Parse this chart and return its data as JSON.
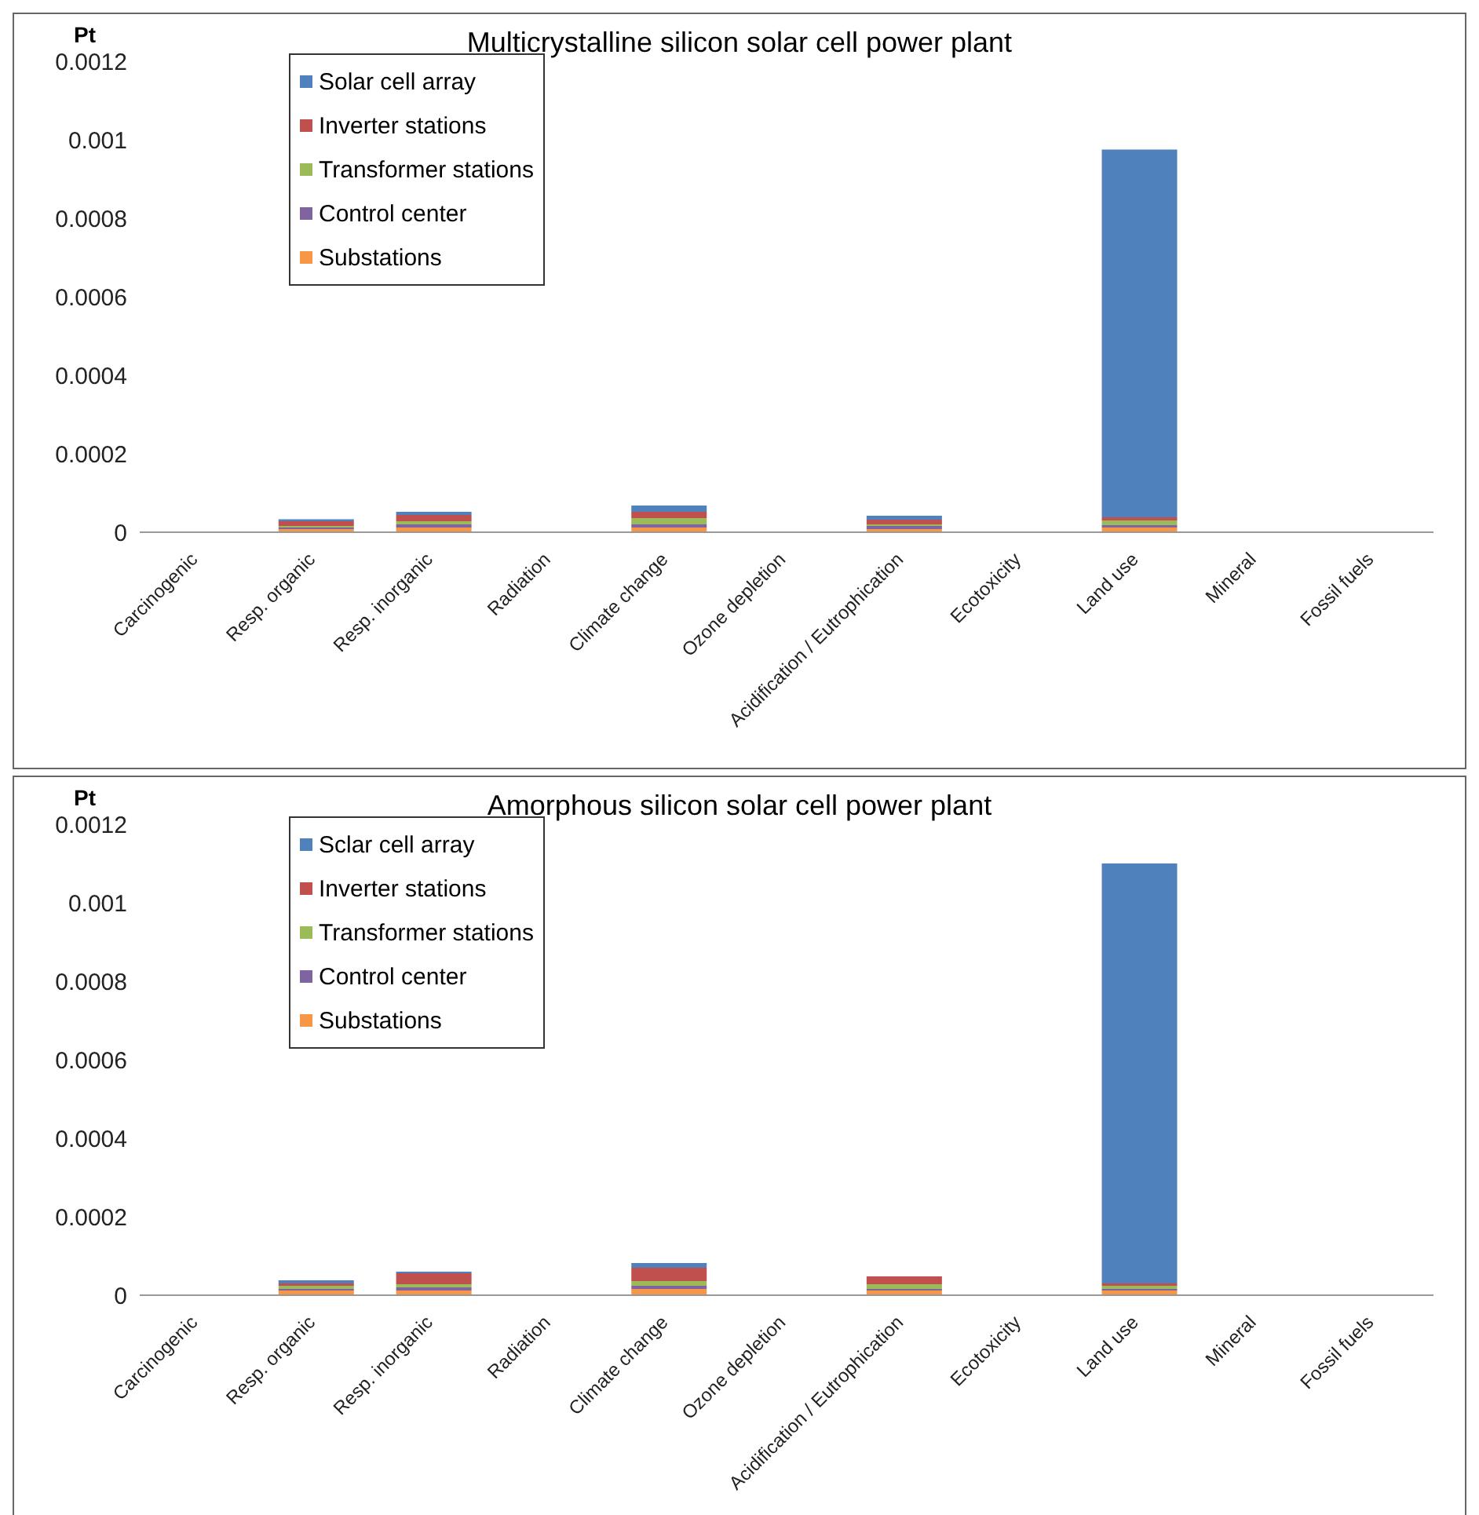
{
  "chart_data": [
    {
      "type": "bar",
      "title": "Multicrystalline silicon solar cell power plant",
      "ylabel": "Pt",
      "stacked": true,
      "legend": "top left",
      "grid": false,
      "categories": [
        "Carcinogenic",
        "Resp. organic",
        "Resp. inorganic",
        "Radiation",
        "Climate change",
        "Ozone depletion",
        "Acidification / Eutrophication",
        "Ecotoxicity",
        "Land use",
        "Mineral",
        "Fossil fuels"
      ],
      "ylim": [
        0,
        0.0012
      ],
      "yticks": [
        0,
        0.0002,
        0.0004,
        0.0006,
        0.0008,
        0.001,
        0.0012
      ],
      "series": [
        {
          "name": "Substations",
          "color": "#f79646",
          "values": [
            0,
            8e-06,
            1.2e-05,
            0,
            1.2e-05,
            0,
            8e-06,
            0,
            1.2e-05,
            0,
            0
          ]
        },
        {
          "name": "Control center",
          "color": "#8064a2",
          "values": [
            0,
            4e-06,
            8e-06,
            0,
            8e-06,
            0,
            8e-06,
            0,
            6e-06,
            0,
            0
          ]
        },
        {
          "name": "Transformer stations",
          "color": "#9bbb59",
          "values": [
            0,
            4e-06,
            8e-06,
            0,
            1.6e-05,
            0,
            4e-06,
            0,
            1.2e-05,
            0,
            0
          ]
        },
        {
          "name": "Inverter stations",
          "color": "#c0504d",
          "values": [
            0,
            1.2e-05,
            1.6e-05,
            0,
            1.6e-05,
            0,
            1.2e-05,
            0,
            8e-06,
            0,
            0
          ]
        },
        {
          "name": "Solar cell array",
          "color": "#4f81bd",
          "values": [
            0,
            5e-06,
            8e-06,
            0,
            1.6e-05,
            0,
            1e-05,
            0,
            0.000937,
            0,
            0
          ]
        }
      ]
    },
    {
      "type": "bar",
      "title": "Amorphous silicon solar cell power plant",
      "ylabel": "Pt",
      "stacked": true,
      "legend": "top left",
      "grid": false,
      "categories": [
        "Carcinogenic",
        "Resp. organic",
        "Resp. inorganic",
        "Radiation",
        "Climate change",
        "Ozone depletion",
        "Acidification / Eutrophication",
        "Ecotoxicity",
        "Land use",
        "Mineral",
        "Fossil fuels"
      ],
      "ylim": [
        0,
        0.0012
      ],
      "yticks": [
        0,
        0.0002,
        0.0004,
        0.0006,
        0.0008,
        0.001,
        0.0012
      ],
      "series": [
        {
          "name": "Substations",
          "color": "#f79646",
          "values": [
            0,
            1.2e-05,
            1.2e-05,
            0,
            1.6e-05,
            0,
            1.2e-05,
            0,
            1.2e-05,
            0,
            0
          ]
        },
        {
          "name": "Control center",
          "color": "#8064a2",
          "values": [
            0,
            4e-06,
            8e-06,
            0,
            8e-06,
            0,
            4e-06,
            0,
            4e-06,
            0,
            0
          ]
        },
        {
          "name": "Transformer stations",
          "color": "#9bbb59",
          "values": [
            0,
            8e-06,
            8e-06,
            0,
            1.2e-05,
            0,
            1.2e-05,
            0,
            8e-06,
            0,
            0
          ]
        },
        {
          "name": "Inverter stations",
          "color": "#c0504d",
          "values": [
            0,
            6e-06,
            2.8e-05,
            0,
            3.4e-05,
            0,
            2e-05,
            0,
            6e-06,
            0,
            0
          ]
        },
        {
          "name": "Sclar cell array",
          "color": "#4f81bd",
          "values": [
            0,
            8e-06,
            4e-06,
            0,
            1.2e-05,
            0,
            0,
            0,
            0.00107,
            0,
            0
          ]
        }
      ]
    }
  ]
}
